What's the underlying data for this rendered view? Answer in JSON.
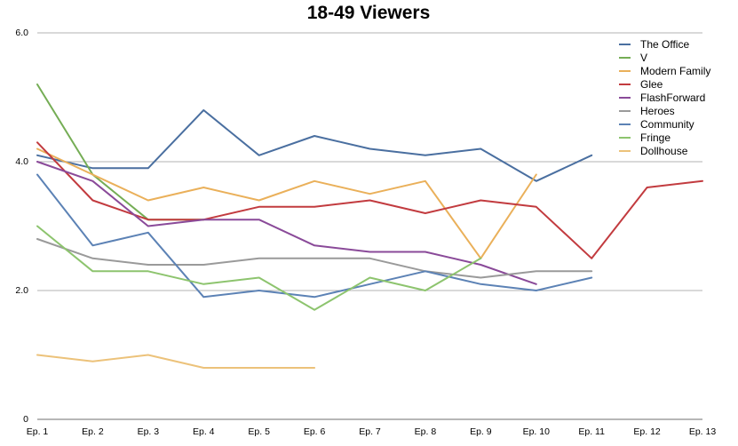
{
  "chart_data": {
    "type": "line",
    "title": "18-49 Viewers",
    "xlabel": "",
    "ylabel": "",
    "categories": [
      "Ep. 1",
      "Ep. 2",
      "Ep. 3",
      "Ep. 4",
      "Ep. 5",
      "Ep. 6",
      "Ep. 7",
      "Ep. 8",
      "Ep. 9",
      "Ep. 10",
      "Ep. 11",
      "Ep. 12",
      "Ep. 13"
    ],
    "ylim": [
      0,
      6
    ],
    "yticks": [
      "0",
      "2.0",
      "4.0",
      "6.0"
    ],
    "ytick_values": [
      0,
      2,
      4,
      6
    ],
    "grid": true,
    "legend_position": "top-right",
    "series": [
      {
        "name": "The Office",
        "color": "#4a6fa0",
        "values": [
          4.1,
          3.9,
          3.9,
          4.8,
          4.1,
          4.4,
          4.2,
          4.1,
          4.2,
          3.7,
          4.1,
          null,
          null
        ]
      },
      {
        "name": "V",
        "color": "#75ad55",
        "values": [
          5.2,
          3.8,
          3.1,
          3.1,
          null,
          null,
          null,
          null,
          null,
          null,
          null,
          null,
          null
        ]
      },
      {
        "name": "Modern Family",
        "color": "#eab05a",
        "values": [
          4.2,
          3.8,
          3.4,
          3.6,
          3.4,
          3.7,
          3.5,
          3.7,
          2.5,
          3.8,
          null,
          null,
          null
        ]
      },
      {
        "name": "Glee",
        "color": "#c23b3f",
        "values": [
          4.3,
          3.4,
          3.1,
          3.1,
          3.3,
          3.3,
          3.4,
          3.2,
          3.4,
          3.3,
          2.5,
          3.6,
          3.7
        ]
      },
      {
        "name": "FlashForward",
        "color": "#8a4a99",
        "values": [
          4.0,
          3.7,
          3.0,
          3.1,
          3.1,
          2.7,
          2.6,
          2.6,
          2.4,
          2.1,
          null,
          null,
          null
        ]
      },
      {
        "name": "Heroes",
        "color": "#9a9a9a",
        "values": [
          2.8,
          2.5,
          2.4,
          2.4,
          2.5,
          2.5,
          2.5,
          2.3,
          2.2,
          2.3,
          2.3,
          null,
          null
        ]
      },
      {
        "name": "Community",
        "color": "#5c82b5",
        "values": [
          3.8,
          2.7,
          2.9,
          1.9,
          2.0,
          1.9,
          2.1,
          2.3,
          2.1,
          2.0,
          2.2,
          null,
          null
        ]
      },
      {
        "name": "Fringe",
        "color": "#8dc46e",
        "values": [
          3.0,
          2.3,
          2.3,
          2.1,
          2.2,
          1.7,
          2.2,
          2.0,
          2.5,
          null,
          null,
          null,
          null
        ]
      },
      {
        "name": "Dollhouse",
        "color": "#ecc27a",
        "values": [
          1.0,
          0.9,
          1.0,
          0.8,
          0.8,
          0.8,
          null,
          null,
          null,
          null,
          null,
          null,
          null
        ]
      }
    ]
  }
}
